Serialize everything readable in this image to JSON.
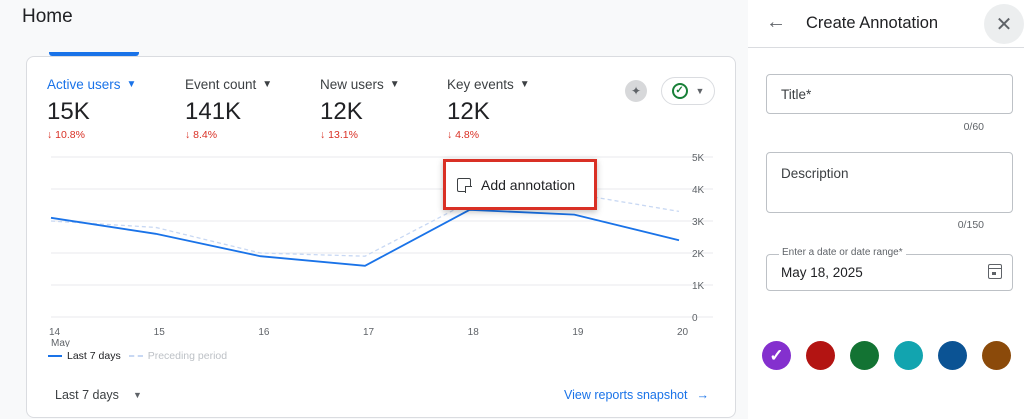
{
  "page": {
    "title": "Home"
  },
  "metrics": [
    {
      "label": "Active users",
      "value": "15K",
      "change": "↓ 10.8%"
    },
    {
      "label": "Event count",
      "value": "141K",
      "change": "↓ 8.4%"
    },
    {
      "label": "New users",
      "value": "12K",
      "change": "↓ 13.1%"
    },
    {
      "label": "Key events",
      "value": "12K",
      "change": "↓ 4.8%"
    }
  ],
  "chart_data": {
    "type": "line",
    "x": [
      "14\nMay",
      "15",
      "16",
      "17",
      "18",
      "19",
      "20"
    ],
    "x_tick_labels": [
      "14",
      "15",
      "16",
      "17",
      "18",
      "19",
      "20"
    ],
    "x_sub_label": "May",
    "y_ticks": [
      "5K",
      "4K",
      "3K",
      "2K",
      "1K",
      "0"
    ],
    "ylim": [
      0,
      5000
    ],
    "grid": true,
    "series": [
      {
        "name": "Last 7 days",
        "values": [
          3100,
          2600,
          1900,
          1600,
          3350,
          3200,
          2400
        ],
        "color": "#1a73e8",
        "style": "solid"
      },
      {
        "name": "Preceding period",
        "values": [
          3000,
          2800,
          2000,
          1900,
          3600,
          3850,
          3300
        ],
        "color": "#c8d8f3",
        "style": "dashed"
      }
    ]
  },
  "legend": {
    "current": "Last 7 days",
    "previous": "Preceding period"
  },
  "footer": {
    "date_range": "Last 7 days",
    "view_link": "View reports snapshot"
  },
  "popup": {
    "label": "Add annotation"
  },
  "panel": {
    "title": "Create Annotation",
    "title_field": {
      "placeholder": "Title*",
      "counter": "0/60"
    },
    "description_field": {
      "placeholder": "Description",
      "counter": "0/150"
    },
    "date_field": {
      "label": "Enter a date or date range*",
      "value": "May 18, 2025"
    },
    "colors": [
      {
        "name": "purple",
        "hex": "#8430ce",
        "selected": true
      },
      {
        "name": "red",
        "hex": "#b31412",
        "selected": false
      },
      {
        "name": "green",
        "hex": "#137333",
        "selected": false
      },
      {
        "name": "teal",
        "hex": "#12a4af",
        "selected": false
      },
      {
        "name": "blue",
        "hex": "#0b5394",
        "selected": false
      },
      {
        "name": "brown",
        "hex": "#8b4a0a",
        "selected": false
      }
    ]
  }
}
